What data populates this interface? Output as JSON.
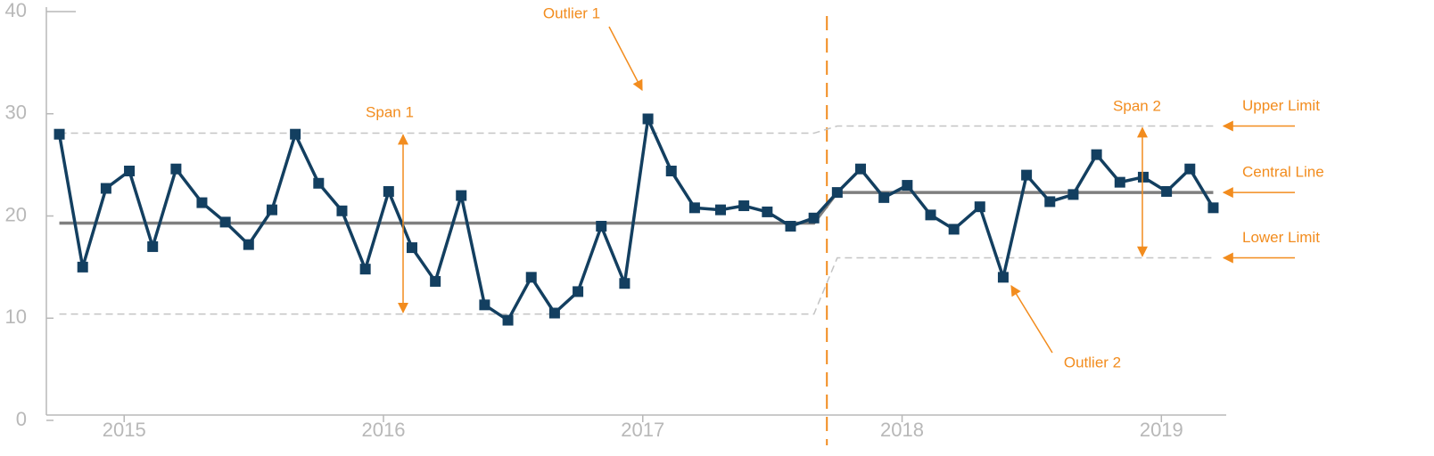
{
  "chart_data": {
    "type": "line",
    "x": [
      2014.75,
      2014.84,
      2014.93,
      2015.02,
      2015.11,
      2015.2,
      2015.3,
      2015.39,
      2015.48,
      2015.57,
      2015.66,
      2015.75,
      2015.84,
      2015.93,
      2016.02,
      2016.11,
      2016.2,
      2016.3,
      2016.39,
      2016.48,
      2016.57,
      2016.66,
      2016.75,
      2016.84,
      2016.93,
      2017.02,
      2017.11,
      2017.2,
      2017.3,
      2017.39,
      2017.48,
      2017.57,
      2017.66,
      2017.75,
      2017.84,
      2017.93,
      2018.02,
      2018.11,
      2018.2,
      2018.3,
      2018.39,
      2018.48,
      2018.57,
      2018.66,
      2018.75,
      2018.84,
      2018.93,
      2019.02,
      2019.11,
      2019.2
    ],
    "series": [
      {
        "color": "#133f60",
        "values": [
          28.0,
          15.0,
          22.7,
          24.4,
          17.0,
          24.6,
          21.3,
          19.4,
          17.2,
          20.6,
          28.0,
          23.2,
          20.5,
          14.8,
          22.4,
          16.9,
          13.6,
          22.0,
          11.3,
          9.8,
          14.0,
          10.5,
          12.6,
          19.0,
          13.4,
          29.5,
          24.4,
          20.8,
          20.6,
          21.0,
          20.4,
          19.0,
          19.8,
          22.3,
          24.6,
          21.8,
          23.0,
          20.1,
          18.7,
          20.9,
          14.0,
          24.0,
          21.4,
          22.1,
          26.0,
          23.3,
          23.8,
          22.4,
          24.6,
          20.8
        ]
      }
    ],
    "limits": [
      {
        "name": "Upper Limit",
        "color": "#c4c4c4",
        "dashed": true,
        "x": [
          2014.75,
          2017.66,
          2017.75,
          2019.2
        ],
        "values": [
          28.1,
          28.1,
          28.8,
          28.8
        ]
      },
      {
        "name": "Central Line",
        "color": "#7f7f7f",
        "dashed": false,
        "x": [
          2014.75,
          2017.66,
          2017.75,
          2019.2
        ],
        "values": [
          19.3,
          19.3,
          22.3,
          22.3
        ]
      },
      {
        "name": "Lower Limit",
        "color": "#c4c4c4",
        "dashed": true,
        "x": [
          2014.75,
          2017.66,
          2017.75,
          2019.2
        ],
        "values": [
          10.4,
          10.4,
          15.9,
          15.9
        ]
      }
    ],
    "phase_change_x": 2017.71,
    "annotations": [
      "Outlier 1",
      "Span 1",
      "Span 2",
      "Outlier 2"
    ],
    "annotation_color": "#f28c1e",
    "xlim": [
      2014.7,
      2019.25
    ],
    "xticks": [
      2015,
      2016,
      2017,
      2018,
      2019
    ],
    "ylim": [
      0,
      40
    ],
    "yticks": [
      0,
      10,
      20,
      30,
      40
    ]
  }
}
